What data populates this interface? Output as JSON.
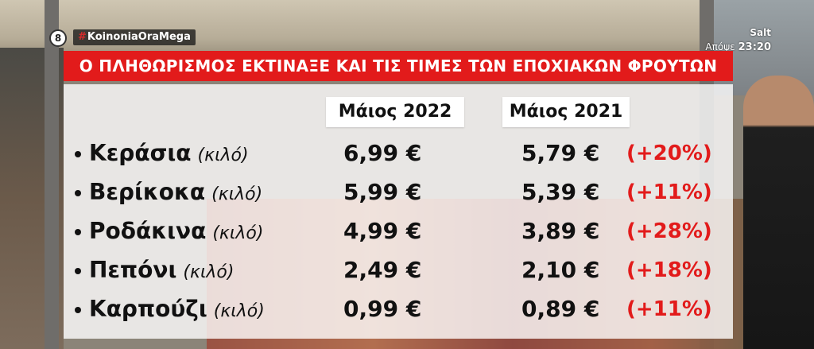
{
  "channel": {
    "logo_text": "8",
    "hashtag": "KoinoniaOraMega",
    "hashtag_symbol": "#",
    "network": "Salt",
    "time_label": "Απόψε",
    "time": "23:20"
  },
  "headline": "Ο ΠΛΗΘΩΡΙΣΜΟΣ ΕΚΤΙΝΑΞΕ ΚΑΙ ΤΙΣ ΤΙΜΕΣ ΤΩΝ ΕΠΟΧΙΑΚΩΝ ΦΡΟΥΤΩΝ",
  "table": {
    "headers": [
      "Μάιος 2022",
      "Μάιος 2021"
    ],
    "rows": [
      {
        "fruit": "Κεράσια",
        "unit": "(κιλό)",
        "price_2022": "6,99 €",
        "price_2021": "5,79 €",
        "change": "(+20%)"
      },
      {
        "fruit": "Βερίκοκα",
        "unit": "(κιλό)",
        "price_2022": "5,99 €",
        "price_2021": "5,39 €",
        "change": "(+11%)"
      },
      {
        "fruit": "Ροδάκινα",
        "unit": "(κιλό)",
        "price_2022": "4,99 €",
        "price_2021": "3,89 €",
        "change": "(+28%)"
      },
      {
        "fruit": "Πεπόνι",
        "unit": "(κιλό)",
        "price_2022": "2,49 €",
        "price_2021": "2,10 €",
        "change": "(+18%)"
      },
      {
        "fruit": "Καρπούζι",
        "unit": "(κιλό)",
        "price_2022": "0,99 €",
        "price_2021": "0,89 €",
        "change": "(+11%)"
      }
    ]
  },
  "colors": {
    "headline_bg": "#e21b1b",
    "change_text": "#e21b1b",
    "panel_bg": "rgba(255,255,255,0.80)"
  }
}
